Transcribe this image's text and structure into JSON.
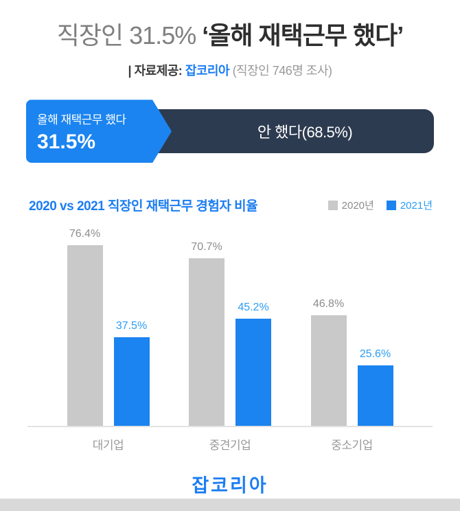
{
  "header": {
    "title_light": "직장인 31.5% ",
    "title_strong": "‘올해 재택근무 했다’",
    "source_prefix": "| 자료제공: ",
    "source_name": "잡코리아",
    "source_note": " (직장인 746명 조사)"
  },
  "banner": {
    "yes_label": "올해 재택근무 했다",
    "yes_value": "31.5%",
    "no_label": "안 했다(68.5%)",
    "yes_color": "#1b84f0",
    "no_color": "#2d3b50"
  },
  "chart_data": {
    "type": "bar",
    "title": "2020 vs 2021 직장인 재택근무 경험자 비율",
    "categories": [
      "대기업",
      "중견기업",
      "중소기업"
    ],
    "series": [
      {
        "name": "2020년",
        "color": "#c9c9c9",
        "label_color": "#8c8c8c",
        "values": [
          76.4,
          70.7,
          46.8
        ]
      },
      {
        "name": "2021년",
        "color": "#1b84f0",
        "label_color": "#2a9df4",
        "values": [
          37.5,
          45.2,
          25.6
        ]
      }
    ],
    "unit": "%",
    "ylim": [
      0,
      100
    ],
    "grid": false,
    "legend_position": "top-right"
  },
  "footer": {
    "brand": "잡코리아"
  }
}
